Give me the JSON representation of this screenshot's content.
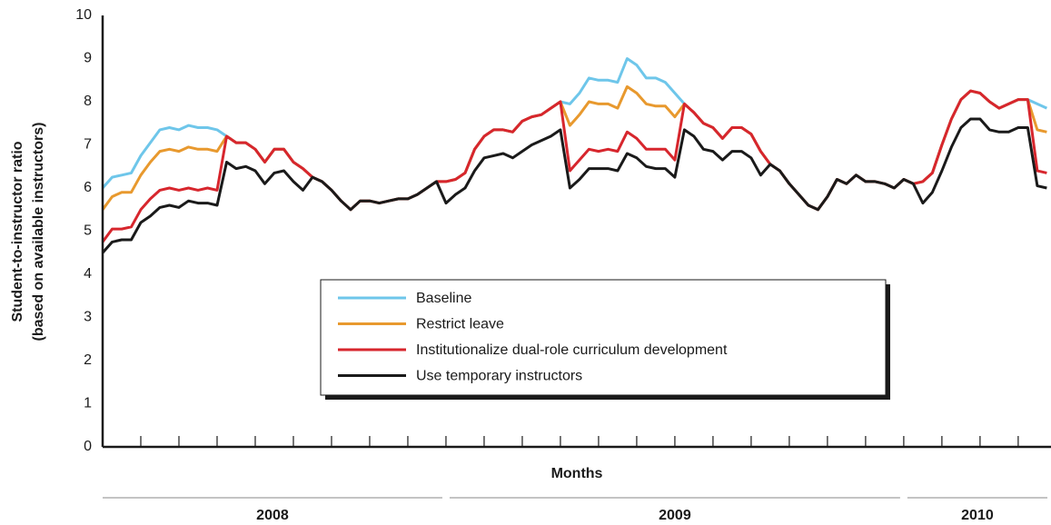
{
  "chart_data": {
    "type": "line",
    "ylabel": [
      "Student-to-instructor ratio",
      "(based on available instructors)"
    ],
    "xlabel": "Months",
    "x": [
      0,
      0.25,
      0.5,
      0.75,
      1,
      1.25,
      1.5,
      1.75,
      2,
      2.25,
      2.5,
      2.75,
      3,
      3.25,
      3.5,
      3.75,
      4,
      4.25,
      4.5,
      4.75,
      5,
      5.25,
      5.5,
      5.75,
      6,
      6.25,
      6.5,
      6.75,
      7,
      7.25,
      7.5,
      7.75,
      8,
      8.25,
      8.5,
      8.75,
      9,
      9.25,
      9.5,
      9.75,
      10,
      10.25,
      10.5,
      10.75,
      11,
      11.25,
      11.5,
      11.75,
      12,
      12.25,
      12.5,
      12.75,
      13,
      13.25,
      13.5,
      13.75,
      14,
      14.25,
      14.5,
      14.75,
      15,
      15.25,
      15.5,
      15.75,
      16,
      16.25,
      16.5,
      16.75,
      17,
      17.25,
      17.5,
      17.75,
      18,
      18.25,
      18.5,
      18.75,
      19,
      19.25,
      19.5,
      19.75,
      20,
      20.25,
      20.5,
      20.75,
      21,
      21.25,
      21.5,
      21.75,
      22,
      22.25,
      22.5,
      22.75,
      23,
      23.25,
      23.5,
      23.75,
      24,
      24.25,
      24.5,
      24.75
    ],
    "xlim": [
      0,
      24.86
    ],
    "xticks": [
      1,
      2,
      3,
      4,
      5,
      6,
      7,
      8,
      9,
      10,
      11,
      12,
      13,
      14,
      15,
      16,
      17,
      18,
      19,
      20,
      21,
      22,
      23,
      24
    ],
    "years": [
      {
        "label": "2008",
        "start": 0,
        "end": 9
      },
      {
        "label": "2009",
        "start": 9,
        "end": 21
      },
      {
        "label": "2010",
        "start": 21,
        "end": 24.86
      }
    ],
    "ylim": [
      0,
      10
    ],
    "yticks": [
      0,
      1,
      2,
      3,
      4,
      5,
      6,
      7,
      8,
      9,
      10
    ],
    "legend": "center",
    "series": [
      {
        "name": "Baseline",
        "color": "#6ec6ea",
        "values": [
          6.0,
          6.25,
          6.3,
          6.35,
          6.75,
          7.05,
          7.35,
          7.4,
          7.35,
          7.45,
          7.4,
          7.4,
          7.35,
          7.2,
          7.05,
          7.05,
          6.9,
          6.6,
          6.9,
          6.9,
          6.6,
          6.45,
          6.25,
          6.15,
          5.95,
          5.7,
          5.5,
          5.7,
          5.7,
          5.65,
          5.7,
          5.75,
          5.75,
          5.85,
          6.0,
          6.15,
          6.15,
          6.2,
          6.35,
          6.9,
          7.2,
          7.35,
          7.35,
          7.3,
          7.55,
          7.65,
          7.7,
          7.85,
          8.0,
          7.95,
          8.2,
          8.55,
          8.5,
          8.5,
          8.45,
          9.0,
          8.85,
          8.55,
          8.55,
          8.45,
          8.2,
          7.95,
          7.75,
          7.5,
          7.4,
          7.15,
          7.4,
          7.4,
          7.25,
          6.85,
          6.55,
          6.4,
          6.1,
          5.85,
          5.6,
          5.5,
          5.8,
          6.2,
          6.1,
          6.3,
          6.15,
          6.15,
          6.1,
          6.0,
          6.2,
          6.1,
          6.15,
          6.35,
          7.0,
          7.6,
          8.05,
          8.25,
          8.2,
          8.0,
          7.85,
          7.95,
          8.05,
          8.05,
          7.95,
          7.85
        ]
      },
      {
        "name": "Restrict leave",
        "color": "#e8992e",
        "values": [
          5.5,
          5.8,
          5.9,
          5.9,
          6.3,
          6.6,
          6.85,
          6.9,
          6.85,
          6.95,
          6.9,
          6.9,
          6.85,
          7.2,
          7.05,
          7.05,
          6.9,
          6.6,
          6.9,
          6.9,
          6.6,
          6.45,
          6.25,
          6.15,
          5.95,
          5.7,
          5.5,
          5.7,
          5.7,
          5.65,
          5.7,
          5.75,
          5.75,
          5.85,
          6.0,
          6.15,
          6.15,
          6.2,
          6.35,
          6.9,
          7.2,
          7.35,
          7.35,
          7.3,
          7.55,
          7.65,
          7.7,
          7.85,
          8.0,
          7.45,
          7.7,
          8.0,
          7.95,
          7.95,
          7.85,
          8.35,
          8.2,
          7.95,
          7.9,
          7.9,
          7.65,
          7.95,
          7.75,
          7.5,
          7.4,
          7.15,
          7.4,
          7.4,
          7.25,
          6.85,
          6.55,
          6.4,
          6.1,
          5.85,
          5.6,
          5.5,
          5.8,
          6.2,
          6.1,
          6.3,
          6.15,
          6.15,
          6.1,
          6.0,
          6.2,
          6.1,
          6.15,
          6.35,
          7.0,
          7.6,
          8.05,
          8.25,
          8.2,
          8.0,
          7.85,
          7.95,
          8.05,
          8.05,
          7.35,
          7.3
        ]
      },
      {
        "name": "Institutionalize dual-role curriculum development",
        "color": "#d7262d",
        "values": [
          4.75,
          5.05,
          5.05,
          5.1,
          5.5,
          5.75,
          5.95,
          6.0,
          5.95,
          6.0,
          5.95,
          6.0,
          5.95,
          7.2,
          7.05,
          7.05,
          6.9,
          6.6,
          6.9,
          6.9,
          6.6,
          6.45,
          6.25,
          6.15,
          5.95,
          5.7,
          5.5,
          5.7,
          5.7,
          5.65,
          5.7,
          5.75,
          5.75,
          5.85,
          6.0,
          6.15,
          6.15,
          6.2,
          6.35,
          6.9,
          7.2,
          7.35,
          7.35,
          7.3,
          7.55,
          7.65,
          7.7,
          7.85,
          8.0,
          6.4,
          6.65,
          6.9,
          6.85,
          6.9,
          6.85,
          7.3,
          7.15,
          6.9,
          6.9,
          6.9,
          6.65,
          7.95,
          7.75,
          7.5,
          7.4,
          7.15,
          7.4,
          7.4,
          7.25,
          6.85,
          6.55,
          6.4,
          6.1,
          5.85,
          5.6,
          5.5,
          5.8,
          6.2,
          6.1,
          6.3,
          6.15,
          6.15,
          6.1,
          6.0,
          6.2,
          6.1,
          6.15,
          6.35,
          7.0,
          7.6,
          8.05,
          8.25,
          8.2,
          8.0,
          7.85,
          7.95,
          8.05,
          8.05,
          6.4,
          6.35
        ]
      },
      {
        "name": "Use temporary instructors",
        "color": "#1a1a1a",
        "values": [
          4.5,
          4.75,
          4.8,
          4.8,
          5.2,
          5.35,
          5.55,
          5.6,
          5.55,
          5.7,
          5.65,
          5.65,
          5.6,
          6.6,
          6.45,
          6.5,
          6.4,
          6.1,
          6.35,
          6.4,
          6.15,
          5.95,
          6.25,
          6.15,
          5.95,
          5.7,
          5.5,
          5.7,
          5.7,
          5.65,
          5.7,
          5.75,
          5.75,
          5.85,
          6.0,
          6.15,
          5.65,
          5.85,
          6.0,
          6.4,
          6.7,
          6.75,
          6.8,
          6.7,
          6.85,
          7.0,
          7.1,
          7.2,
          7.35,
          6.0,
          6.2,
          6.45,
          6.45,
          6.45,
          6.4,
          6.8,
          6.7,
          6.5,
          6.45,
          6.45,
          6.25,
          7.35,
          7.2,
          6.9,
          6.85,
          6.65,
          6.85,
          6.85,
          6.7,
          6.3,
          6.55,
          6.4,
          6.1,
          5.85,
          5.6,
          5.5,
          5.8,
          6.2,
          6.1,
          6.3,
          6.15,
          6.15,
          6.1,
          6.0,
          6.2,
          6.1,
          5.65,
          5.9,
          6.4,
          6.95,
          7.4,
          7.6,
          7.6,
          7.35,
          7.3,
          7.3,
          7.4,
          7.4,
          6.05,
          6.0
        ]
      }
    ]
  }
}
